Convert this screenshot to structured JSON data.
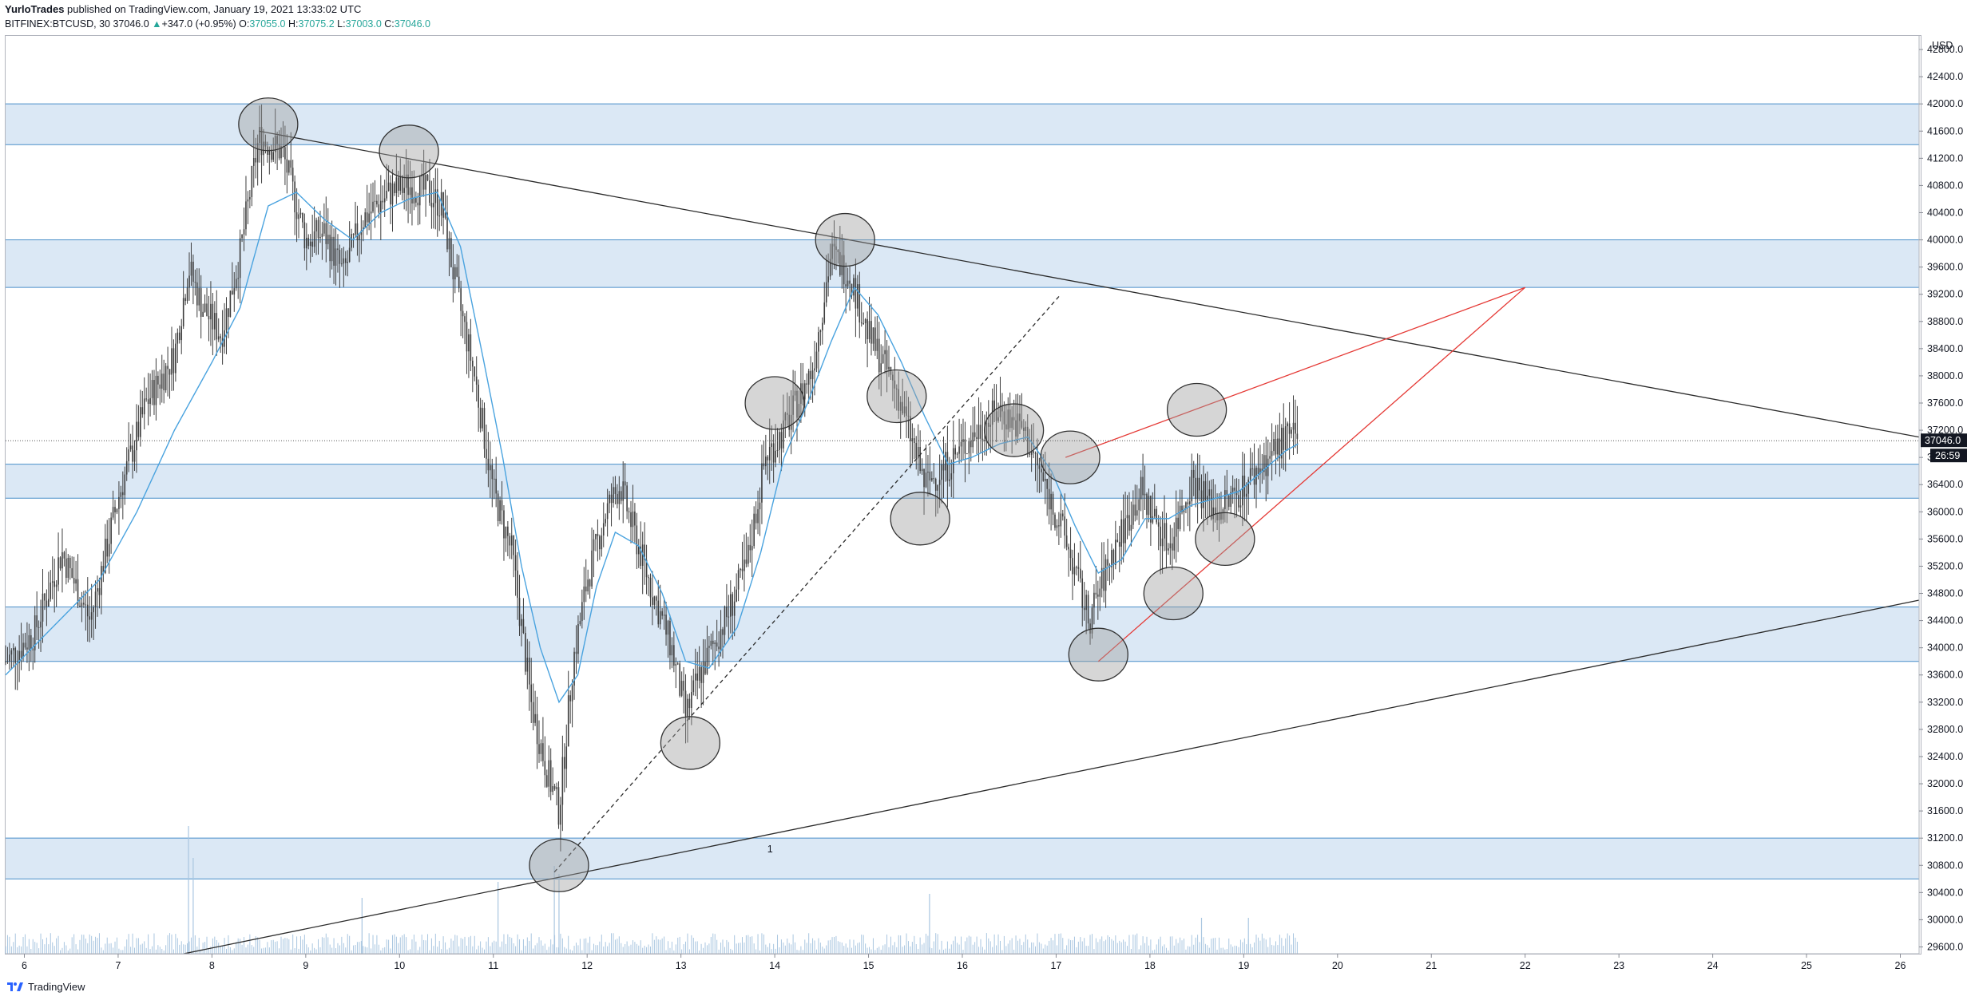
{
  "header": {
    "author": "YurloTrades",
    "published": "published on TradingView.com, January 19, 2021 13:33:02 UTC",
    "symbol": "BITFINEX:BTCUSD, 30",
    "last": "37046.0",
    "change": "+347.0 (+0.95%)",
    "o_label": "O:",
    "o_value": "37055.0",
    "h_label": "H:",
    "h_value": "37075.2",
    "l_label": "L:",
    "l_value": "37003.0",
    "c_label": "C:",
    "c_value": "37046.0"
  },
  "footer": {
    "brand": "TradingView"
  },
  "colors": {
    "zone_fill": "#dbe8f5",
    "zone_line": "#4a8fc9",
    "ma": "#4aa3df",
    "candle": "#3d3d3d",
    "trend_black": "#2b2b2b",
    "trend_red": "#e53935",
    "circle_fill": "#9e9e9e",
    "volume": "#a9c6e0",
    "axis_border": "#b2b5be"
  },
  "chart_data": {
    "type": "candlestick",
    "symbol": "BITFINEX:BTCUSD",
    "interval": "30",
    "currency": "USD",
    "x_axis": {
      "type": "date",
      "tick_labels": [
        "6",
        "7",
        "8",
        "9",
        "10",
        "11",
        "12",
        "13",
        "14",
        "15",
        "16",
        "17",
        "18",
        "19",
        "20",
        "21",
        "22",
        "23",
        "24",
        "25",
        "26"
      ],
      "range_days": [
        5.8,
        26.2
      ]
    },
    "y_axis": {
      "range": [
        29500,
        43000
      ],
      "tick_labels": [
        "42800.0",
        "42400.0",
        "42000.0",
        "41600.0",
        "41200.0",
        "40800.0",
        "40400.0",
        "40000.0",
        "39600.0",
        "39200.0",
        "38800.0",
        "38400.0",
        "38000.0",
        "37600.0",
        "37200.0",
        "36800.0",
        "36400.0",
        "36000.0",
        "35600.0",
        "35200.0",
        "34800.0",
        "34400.0",
        "34000.0",
        "33600.0",
        "33200.0",
        "32800.0",
        "32400.0",
        "32000.0",
        "31600.0",
        "31200.0",
        "30800.0",
        "30400.0",
        "30000.0",
        "29600.0"
      ],
      "unit_label": "USD"
    },
    "last_price_label": "37046.0",
    "countdown_label": "26:59",
    "last_price": 37046.0,
    "price_path": [
      [
        5.8,
        33800
      ],
      [
        6.1,
        34200
      ],
      [
        6.4,
        35400
      ],
      [
        6.7,
        34400
      ],
      [
        7.0,
        36200
      ],
      [
        7.3,
        37600
      ],
      [
        7.6,
        38300
      ],
      [
        7.75,
        39600
      ],
      [
        7.9,
        39000
      ],
      [
        8.1,
        38600
      ],
      [
        8.3,
        39800
      ],
      [
        8.5,
        41500
      ],
      [
        8.75,
        41300
      ],
      [
        9.0,
        40000
      ],
      [
        9.2,
        40100
      ],
      [
        9.4,
        39500
      ],
      [
        9.6,
        40300
      ],
      [
        9.9,
        40700
      ],
      [
        10.1,
        40800
      ],
      [
        10.3,
        40700
      ],
      [
        10.45,
        40500
      ],
      [
        10.6,
        39300
      ],
      [
        10.8,
        38000
      ],
      [
        11.0,
        36300
      ],
      [
        11.2,
        35400
      ],
      [
        11.4,
        33200
      ],
      [
        11.55,
        32300
      ],
      [
        11.7,
        31600
      ],
      [
        11.85,
        33800
      ],
      [
        12.0,
        35000
      ],
      [
        12.2,
        36000
      ],
      [
        12.35,
        36400
      ],
      [
        12.5,
        35700
      ],
      [
        12.7,
        34800
      ],
      [
        12.9,
        34000
      ],
      [
        13.05,
        33000
      ],
      [
        13.2,
        33600
      ],
      [
        13.5,
        34500
      ],
      [
        13.7,
        35200
      ],
      [
        13.9,
        36800
      ],
      [
        14.1,
        37200
      ],
      [
        14.4,
        38100
      ],
      [
        14.6,
        39800
      ],
      [
        14.8,
        39500
      ],
      [
        15.0,
        38600
      ],
      [
        15.3,
        37800
      ],
      [
        15.6,
        36400
      ],
      [
        15.85,
        36700
      ],
      [
        16.1,
        37100
      ],
      [
        16.4,
        37500
      ],
      [
        16.65,
        37200
      ],
      [
        16.85,
        36500
      ],
      [
        17.1,
        35600
      ],
      [
        17.35,
        34400
      ],
      [
        17.6,
        35400
      ],
      [
        17.9,
        36300
      ],
      [
        18.2,
        35500
      ],
      [
        18.45,
        36500
      ],
      [
        18.7,
        36000
      ],
      [
        18.95,
        36300
      ],
      [
        19.2,
        36700
      ],
      [
        19.45,
        37100
      ],
      [
        19.58,
        37046
      ]
    ],
    "moving_average": {
      "color": "#4aa3df",
      "path": [
        [
          5.8,
          33600
        ],
        [
          6.3,
          34300
        ],
        [
          6.8,
          35000
        ],
        [
          7.2,
          36000
        ],
        [
          7.6,
          37200
        ],
        [
          8.0,
          38200
        ],
        [
          8.3,
          39000
        ],
        [
          8.6,
          40500
        ],
        [
          8.9,
          40700
        ],
        [
          9.2,
          40300
        ],
        [
          9.5,
          40000
        ],
        [
          9.8,
          40400
        ],
        [
          10.1,
          40600
        ],
        [
          10.4,
          40700
        ],
        [
          10.65,
          39900
        ],
        [
          10.9,
          38200
        ],
        [
          11.1,
          36800
        ],
        [
          11.3,
          35200
        ],
        [
          11.5,
          34000
        ],
        [
          11.7,
          33200
        ],
        [
          11.9,
          33600
        ],
        [
          12.1,
          34900
        ],
        [
          12.3,
          35700
        ],
        [
          12.55,
          35500
        ],
        [
          12.8,
          34800
        ],
        [
          13.05,
          33800
        ],
        [
          13.3,
          33700
        ],
        [
          13.6,
          34300
        ],
        [
          13.85,
          35400
        ],
        [
          14.1,
          36800
        ],
        [
          14.35,
          37600
        ],
        [
          14.6,
          38500
        ],
        [
          14.85,
          39300
        ],
        [
          15.1,
          38900
        ],
        [
          15.35,
          38200
        ],
        [
          15.6,
          37400
        ],
        [
          15.85,
          36700
        ],
        [
          16.1,
          36800
        ],
        [
          16.4,
          37000
        ],
        [
          16.7,
          37100
        ],
        [
          16.95,
          36600
        ],
        [
          17.2,
          35800
        ],
        [
          17.45,
          35100
        ],
        [
          17.7,
          35300
        ],
        [
          17.95,
          35900
        ],
        [
          18.2,
          35900
        ],
        [
          18.45,
          36100
        ],
        [
          18.7,
          36200
        ],
        [
          18.95,
          36300
        ],
        [
          19.2,
          36600
        ],
        [
          19.45,
          36900
        ],
        [
          19.58,
          37000
        ]
      ]
    },
    "zones": [
      {
        "from": 41400,
        "to": 42000
      },
      {
        "from": 39300,
        "to": 40000
      },
      {
        "from": 36200,
        "to": 36700
      },
      {
        "from": 33800,
        "to": 34600
      },
      {
        "from": 30600,
        "to": 31200
      }
    ],
    "annotations": {
      "trend_lines": [
        {
          "color": "#2b2b2b",
          "style": "solid",
          "from": [
            8.5,
            41600
          ],
          "to": [
            26.2,
            37100
          ]
        },
        {
          "color": "#2b2b2b",
          "style": "solid",
          "from": [
            7.7,
            29500
          ],
          "to": [
            26.2,
            34700
          ]
        },
        {
          "color": "#2b2b2b",
          "style": "dashed",
          "from": [
            11.65,
            30700
          ],
          "to": [
            17.05,
            39200
          ]
        },
        {
          "color": "#e53935",
          "style": "solid",
          "from": [
            17.45,
            33800
          ],
          "to": [
            22.0,
            39300
          ]
        },
        {
          "color": "#e53935",
          "style": "solid",
          "from": [
            17.1,
            36800
          ],
          "to": [
            22.0,
            39300
          ]
        }
      ],
      "circles": [
        [
          8.6,
          41700
        ],
        [
          10.1,
          41300
        ],
        [
          11.7,
          30800
        ],
        [
          13.1,
          32600
        ],
        [
          14.0,
          37600
        ],
        [
          14.75,
          40000
        ],
        [
          15.3,
          37700
        ],
        [
          15.55,
          35900
        ],
        [
          16.55,
          37200
        ],
        [
          17.15,
          36800
        ],
        [
          17.45,
          33900
        ],
        [
          18.25,
          34800
        ],
        [
          18.5,
          37500
        ],
        [
          18.8,
          35600
        ]
      ],
      "text_labels": [
        {
          "text": "1",
          "at": [
            13.95,
            30990
          ]
        }
      ]
    },
    "volume": {
      "color": "#a9c6e0",
      "tall_bars": [
        [
          7.75,
          160
        ],
        [
          7.8,
          120
        ],
        [
          9.6,
          70
        ],
        [
          11.05,
          90
        ],
        [
          11.65,
          110
        ],
        [
          11.7,
          100
        ],
        [
          15.65,
          75
        ],
        [
          18.55,
          45
        ],
        [
          19.05,
          45
        ]
      ]
    }
  }
}
